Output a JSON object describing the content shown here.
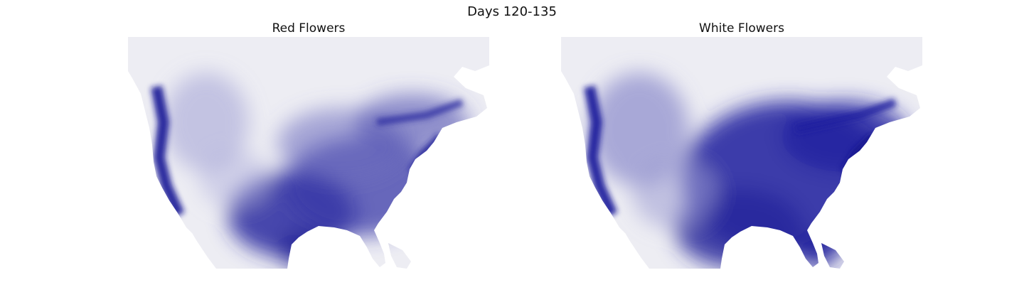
{
  "figure": {
    "title": "Days 120-135",
    "panels": [
      {
        "title": "Red Flowers",
        "intensity": "lower",
        "hot_color": "#1a1a9a"
      },
      {
        "title": "White Flowers",
        "intensity": "higher",
        "hot_color": "#1a1a9a"
      }
    ],
    "colormap": {
      "low": "#eeeef4",
      "high": "#14148f"
    }
  }
}
